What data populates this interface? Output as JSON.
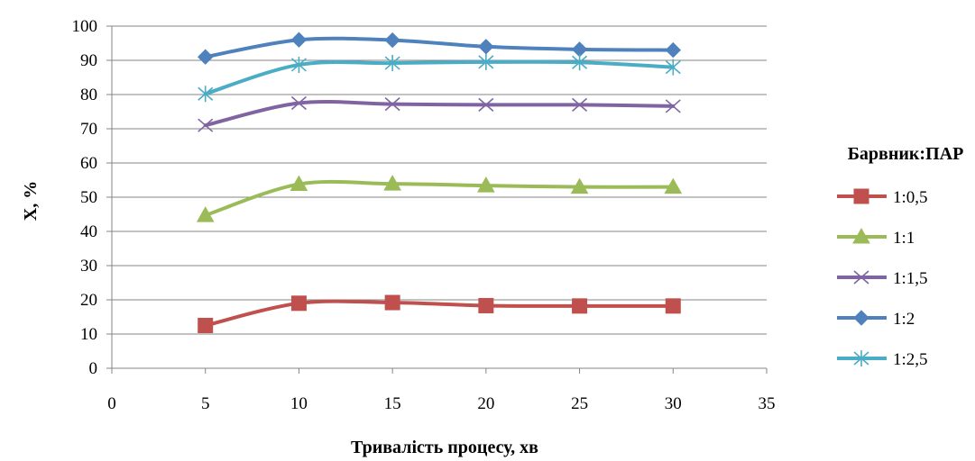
{
  "chart_data": {
    "type": "line",
    "title": "",
    "xlabel": "Тривалість процесу, хв",
    "ylabel": "X, %",
    "xlim": [
      0,
      35
    ],
    "ylim": [
      0,
      100
    ],
    "x_ticks": [
      "0",
      "5",
      "10",
      "15",
      "20",
      "25",
      "30",
      "35"
    ],
    "y_ticks": [
      "0",
      "10",
      "20",
      "30",
      "40",
      "50",
      "60",
      "70",
      "80",
      "90",
      "100"
    ],
    "grid": "horizontal",
    "smooth": true,
    "legend": {
      "title": "Барвник:ПАР",
      "position": "right"
    },
    "x": [
      5,
      10,
      15,
      20,
      25,
      30
    ],
    "series": [
      {
        "name": "1:0,5",
        "color": "#C0504D",
        "marker": "square",
        "values": [
          12.5,
          19.0,
          19.2,
          18.3,
          18.2,
          18.2
        ]
      },
      {
        "name": "1:1",
        "color": "#9BBB59",
        "marker": "triangle",
        "values": [
          44.7,
          53.8,
          53.9,
          53.4,
          53.0,
          53.0
        ]
      },
      {
        "name": "1:1,5",
        "color": "#8064A2",
        "marker": "x",
        "values": [
          71.0,
          77.5,
          77.2,
          77.0,
          77.0,
          76.6
        ]
      },
      {
        "name": "1:2",
        "color": "#4F81BD",
        "marker": "diamond",
        "values": [
          91.0,
          96.0,
          95.9,
          94.0,
          93.2,
          93.0
        ]
      },
      {
        "name": "1:2,5",
        "color": "#4BACC6",
        "marker": "star",
        "values": [
          80.2,
          88.7,
          89.2,
          89.5,
          89.4,
          88.0
        ]
      }
    ]
  }
}
